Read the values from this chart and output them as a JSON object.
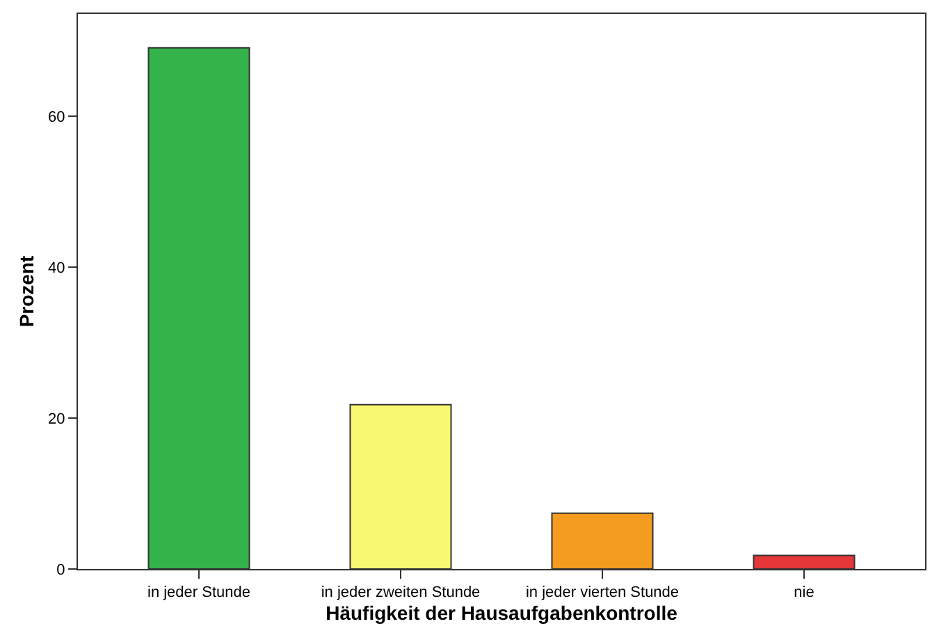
{
  "chart_data": {
    "type": "bar",
    "xlabel": "Häufigkeit der Hausaufgabenkontrolle",
    "ylabel": "Prozent",
    "categories": [
      "in jeder Stunde",
      "in jeder zweiten Stunde",
      "in jeder vierten Stunde",
      "nie"
    ],
    "values": [
      69.1,
      21.8,
      7.4,
      1.8
    ],
    "colors": [
      "#34b34a",
      "#f9f871",
      "#f39c1f",
      "#e5363a"
    ],
    "ylim": [
      0,
      73.6
    ],
    "yticks": [
      0,
      20,
      40,
      60
    ]
  }
}
